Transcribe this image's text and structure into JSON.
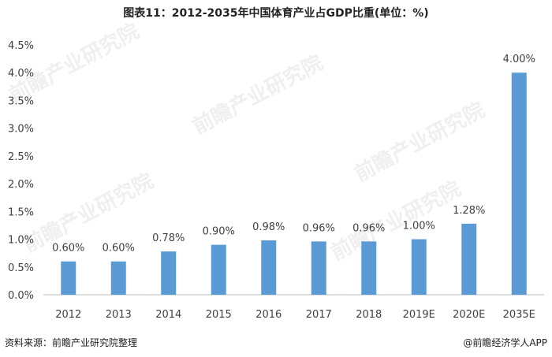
{
  "chart_data": {
    "type": "bar",
    "title": "图表11：2012-2035年中国体育产业占GDP比重(单位：%)",
    "categories": [
      "2012",
      "2013",
      "2014",
      "2015",
      "2016",
      "2017",
      "2018",
      "2019E",
      "2020E",
      "2035E"
    ],
    "values": [
      0.6,
      0.6,
      0.78,
      0.9,
      0.98,
      0.96,
      0.96,
      1.0,
      1.28,
      4.0
    ],
    "data_labels": [
      "0.60%",
      "0.60%",
      "0.78%",
      "0.90%",
      "0.98%",
      "0.96%",
      "0.96%",
      "1.00%",
      "1.28%",
      "4.00%"
    ],
    "yticks": [
      0,
      0.5,
      1.0,
      1.5,
      2.0,
      2.5,
      3.0,
      3.5,
      4.0,
      4.5
    ],
    "ytick_labels": [
      "0.0%",
      "0.5%",
      "1.0%",
      "1.5%",
      "2.0%",
      "2.5%",
      "3.0%",
      "3.5%",
      "4.0%",
      "4.5%"
    ],
    "ylim": [
      0,
      4.5
    ],
    "xlabel": "",
    "ylabel": "",
    "grid": false,
    "bar_color": "#5B9BD5",
    "axis_color": "#BFBFBF"
  },
  "footer": {
    "source": "资料来源：前瞻产业研究院整理",
    "brand": "@前瞻经济学人APP"
  },
  "watermark": "前瞻产业研究院"
}
